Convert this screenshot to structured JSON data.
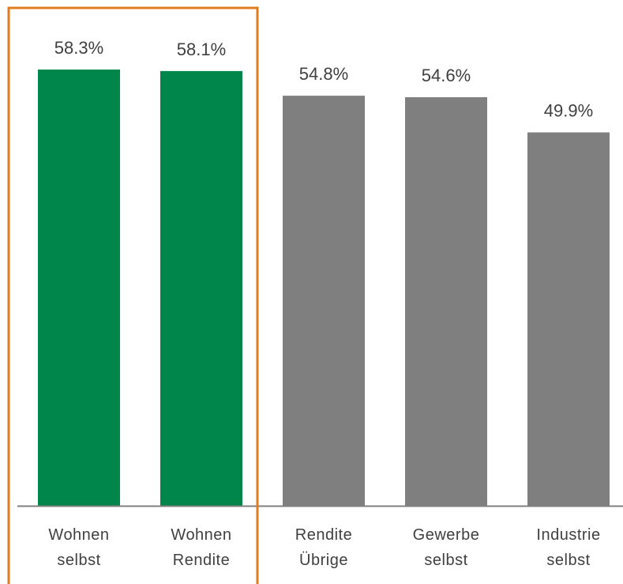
{
  "chart_data": {
    "type": "bar",
    "categories": [
      [
        "Wohnen",
        "selbst"
      ],
      [
        "Wohnen",
        "Rendite"
      ],
      [
        "Rendite",
        "Übrige"
      ],
      [
        "Gewerbe",
        "selbst"
      ],
      [
        "Industrie",
        "selbst"
      ]
    ],
    "values": [
      58.3,
      58.1,
      54.8,
      54.6,
      49.9
    ],
    "value_labels": [
      "58.3%",
      "58.1%",
      "54.8%",
      "54.6%",
      "49.9%"
    ],
    "ylim": [
      0,
      65
    ],
    "grid": false,
    "bar_colors": [
      "#00854A",
      "#00854A",
      "#7F7F7F",
      "#7F7F7F",
      "#7F7F7F"
    ],
    "axis_color": "#7F7F7F",
    "highlight": {
      "categories": [
        0,
        1
      ],
      "color": "#E07B1F"
    }
  }
}
